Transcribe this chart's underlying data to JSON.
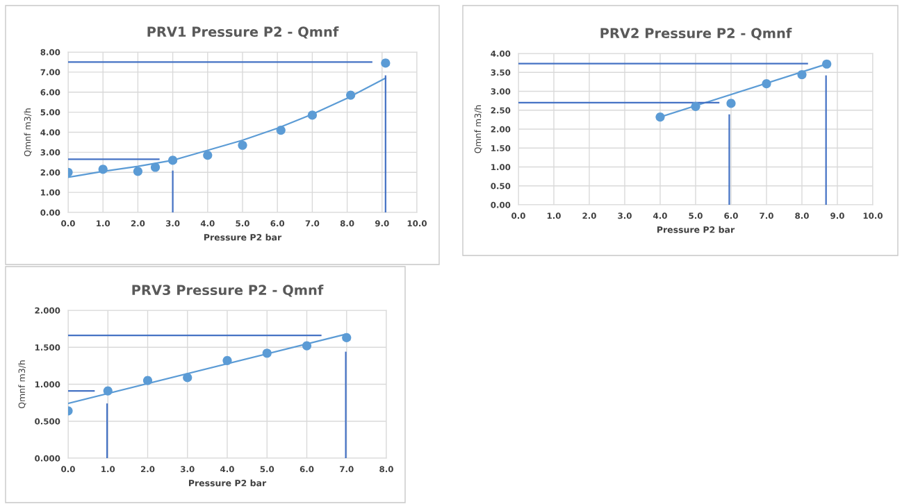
{
  "chart_data": [
    {
      "type": "scatter",
      "title": "PRV1 Pressure P2 - Qmnf",
      "xlabel": "Pressure P2 bar",
      "ylabel": "Qmnf m3/h",
      "grid": true,
      "xlim": [
        0,
        10
      ],
      "ylim": [
        0,
        8
      ],
      "xticks": [
        {
          "value": 0,
          "label": "0.0"
        },
        {
          "value": 1,
          "label": "1.0"
        },
        {
          "value": 2,
          "label": "2.0"
        },
        {
          "value": 3,
          "label": "3.0"
        },
        {
          "value": 4,
          "label": "4.0"
        },
        {
          "value": 5,
          "label": "5.0"
        },
        {
          "value": 6,
          "label": "6.0"
        },
        {
          "value": 7,
          "label": "7.0"
        },
        {
          "value": 8,
          "label": "8.0"
        },
        {
          "value": 9,
          "label": "9.0"
        },
        {
          "value": 10,
          "label": "10.0"
        }
      ],
      "yticks": [
        {
          "value": 0,
          "label": "0.00"
        },
        {
          "value": 1,
          "label": "1.00"
        },
        {
          "value": 2,
          "label": "2.00"
        },
        {
          "value": 3,
          "label": "3.00"
        },
        {
          "value": 4,
          "label": "4.00"
        },
        {
          "value": 5,
          "label": "5.00"
        },
        {
          "value": 6,
          "label": "6.00"
        },
        {
          "value": 7,
          "label": "7.00"
        },
        {
          "value": 8,
          "label": "8.00"
        }
      ],
      "series": [
        {
          "marker": "circle",
          "color": "#5b9bd5",
          "x": [
            0,
            1,
            2,
            2.5,
            3,
            4,
            5,
            6.1,
            7,
            8.1,
            9.1
          ],
          "values": [
            2.0,
            2.15,
            2.05,
            2.25,
            2.6,
            2.85,
            3.35,
            4.1,
            4.85,
            5.85,
            7.45
          ]
        },
        {
          "type": "line",
          "color": "#5b9bd5",
          "x": [
            0,
            1,
            2,
            3,
            4,
            5,
            6,
            7,
            8,
            9.1
          ],
          "values": [
            1.75,
            2.05,
            2.3,
            2.6,
            3.1,
            3.6,
            4.2,
            4.9,
            5.7,
            6.7
          ]
        },
        {
          "type": "line",
          "color": "#4472c4",
          "x": [
            0,
            8.7
          ],
          "values": [
            7.5,
            7.5
          ]
        },
        {
          "type": "line",
          "color": "#4472c4",
          "x": [
            0,
            2.6
          ],
          "values": [
            2.65,
            2.65
          ]
        },
        {
          "type": "line",
          "color": "#4472c4",
          "x": [
            3.0,
            3.0
          ],
          "values": [
            0,
            2.05
          ]
        },
        {
          "type": "line",
          "color": "#4472c4",
          "x": [
            9.1,
            9.1
          ],
          "values": [
            0,
            6.8
          ]
        }
      ]
    },
    {
      "type": "scatter",
      "title": "PRV2 Pressure P2 - Qmnf",
      "xlabel": "Pressure P2 bar",
      "ylabel": "Qmnf m3/h",
      "grid": true,
      "xlim": [
        0,
        10
      ],
      "ylim": [
        0,
        4
      ],
      "xticks": [
        {
          "value": 0,
          "label": "0.0"
        },
        {
          "value": 1,
          "label": "1.0"
        },
        {
          "value": 2,
          "label": "2.0"
        },
        {
          "value": 3,
          "label": "3.0"
        },
        {
          "value": 4,
          "label": "4.0"
        },
        {
          "value": 5,
          "label": "5.0"
        },
        {
          "value": 6,
          "label": "6.0"
        },
        {
          "value": 7,
          "label": "7.0"
        },
        {
          "value": 8,
          "label": "8.0"
        },
        {
          "value": 9,
          "label": "9.0"
        },
        {
          "value": 10,
          "label": "10.0"
        }
      ],
      "yticks": [
        {
          "value": 0,
          "label": "0.00"
        },
        {
          "value": 0.5,
          "label": "0.50"
        },
        {
          "value": 1,
          "label": "1.00"
        },
        {
          "value": 1.5,
          "label": "1.50"
        },
        {
          "value": 2,
          "label": "2.00"
        },
        {
          "value": 2.5,
          "label": "2.50"
        },
        {
          "value": 3,
          "label": "3.00"
        },
        {
          "value": 3.5,
          "label": "3.50"
        },
        {
          "value": 4,
          "label": "4.00"
        }
      ],
      "series": [
        {
          "marker": "circle",
          "color": "#5b9bd5",
          "x": [
            4,
            5,
            6,
            7,
            8,
            8.7
          ],
          "values": [
            2.32,
            2.6,
            2.68,
            3.2,
            3.44,
            3.72
          ]
        },
        {
          "type": "line",
          "color": "#5b9bd5",
          "x": [
            4,
            8.7
          ],
          "values": [
            2.32,
            3.72
          ]
        },
        {
          "type": "line",
          "color": "#4472c4",
          "x": [
            0,
            8.15
          ],
          "values": [
            3.73,
            3.73
          ]
        },
        {
          "type": "line",
          "color": "#4472c4",
          "x": [
            0,
            5.65
          ],
          "values": [
            2.7,
            2.7
          ]
        },
        {
          "type": "line",
          "color": "#4472c4",
          "x": [
            5.95,
            5.95
          ],
          "values": [
            0,
            2.37
          ]
        },
        {
          "type": "line",
          "color": "#4472c4",
          "x": [
            8.68,
            8.68
          ],
          "values": [
            0,
            3.4
          ]
        }
      ]
    },
    {
      "type": "scatter",
      "title": "PRV3 Pressure P2 - Qmnf",
      "xlabel": "Pressure P2 bar",
      "ylabel": "Qmnf m3/h",
      "grid": true,
      "xlim": [
        0,
        8
      ],
      "ylim": [
        0,
        2
      ],
      "xticks": [
        {
          "value": 0,
          "label": "0.0"
        },
        {
          "value": 1,
          "label": "1.0"
        },
        {
          "value": 2,
          "label": "2.0"
        },
        {
          "value": 3,
          "label": "3.0"
        },
        {
          "value": 4,
          "label": "4.0"
        },
        {
          "value": 5,
          "label": "5.0"
        },
        {
          "value": 6,
          "label": "6.0"
        },
        {
          "value": 7,
          "label": "7.0"
        },
        {
          "value": 8,
          "label": "8.0"
        }
      ],
      "yticks": [
        {
          "value": 0,
          "label": "0.000"
        },
        {
          "value": 0.5,
          "label": "0.500"
        },
        {
          "value": 1,
          "label": "1.000"
        },
        {
          "value": 1.5,
          "label": "1.500"
        },
        {
          "value": 2,
          "label": "2.000"
        }
      ],
      "series": [
        {
          "marker": "circle",
          "color": "#5b9bd5",
          "x": [
            0,
            1,
            2,
            3,
            4,
            5,
            6,
            7
          ],
          "values": [
            0.64,
            0.91,
            1.05,
            1.09,
            1.32,
            1.42,
            1.52,
            1.63
          ]
        },
        {
          "type": "line",
          "color": "#5b9bd5",
          "x": [
            0,
            7
          ],
          "values": [
            0.74,
            1.68
          ]
        },
        {
          "type": "line",
          "color": "#4472c4",
          "x": [
            0,
            6.35
          ],
          "values": [
            1.66,
            1.66
          ]
        },
        {
          "type": "line",
          "color": "#4472c4",
          "x": [
            0,
            0.65
          ],
          "values": [
            0.91,
            0.91
          ]
        },
        {
          "type": "line",
          "color": "#4472c4",
          "x": [
            0.98,
            0.98
          ],
          "values": [
            0,
            0.73
          ]
        },
        {
          "type": "line",
          "color": "#4472c4",
          "x": [
            6.98,
            6.98
          ],
          "values": [
            0,
            1.43
          ]
        }
      ]
    }
  ]
}
